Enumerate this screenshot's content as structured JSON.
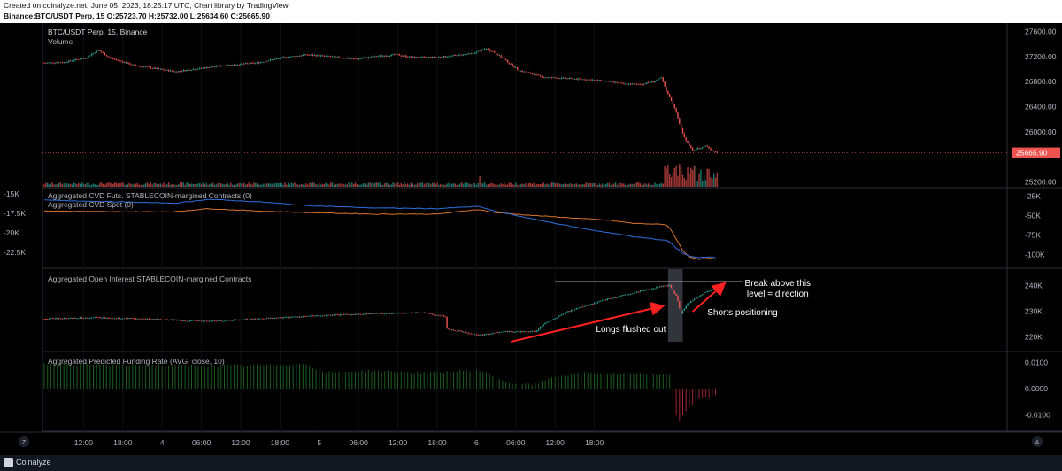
{
  "header": {
    "line1": "Created on coinalyze.net, June 05, 2023, 18:25:17 UTC, Chart library by TradingView",
    "line2": "Binance:BTC/USDT Perp, 15 O:25723.70 H:25732.00 L:25634.60 C:25665.90"
  },
  "footer": {
    "brand": "Coinalyze"
  },
  "colors": {
    "up": "#26a69a",
    "down": "#ef5350",
    "futs": "#d9742a",
    "spot": "#2f6fde",
    "funding_pos": "#1b5e20",
    "funding_neg": "#a0242d",
    "arrow": "#ff2020",
    "price_tag": "#ef5350"
  },
  "axis_corner": {
    "left": "Z",
    "right": "A"
  },
  "chart_data": [
    {
      "type": "candlestick",
      "title": "BTC/USDT Perp, 15, Binance",
      "subtitle": "Volume",
      "y_ticks": [
        "27600.00",
        "27200.00",
        "26800.00",
        "26400.00",
        "26000.00",
        "25200.00"
      ],
      "y_tick_values": [
        27600,
        27200,
        26800,
        26400,
        26000,
        25200
      ],
      "ylim": [
        25180,
        27650
      ],
      "last_price": "25665.90",
      "last_price_value": 25665.9,
      "price_path": [
        [
          0,
          27100
        ],
        [
          12,
          27110
        ],
        [
          25,
          27180
        ],
        [
          33,
          27300
        ],
        [
          40,
          27180
        ],
        [
          55,
          27060
        ],
        [
          70,
          27000
        ],
        [
          80,
          26960
        ],
        [
          95,
          27010
        ],
        [
          110,
          27060
        ],
        [
          130,
          27100
        ],
        [
          145,
          27180
        ],
        [
          160,
          27230
        ],
        [
          175,
          27200
        ],
        [
          190,
          27160
        ],
        [
          205,
          27210
        ],
        [
          215,
          27230
        ],
        [
          225,
          27190
        ],
        [
          240,
          27190
        ],
        [
          252,
          27220
        ],
        [
          262,
          27250
        ],
        [
          270,
          27330
        ],
        [
          276,
          27250
        ],
        [
          290,
          26980
        ],
        [
          305,
          26870
        ],
        [
          320,
          26850
        ],
        [
          335,
          26830
        ],
        [
          345,
          26800
        ],
        [
          355,
          26760
        ],
        [
          365,
          26760
        ],
        [
          372,
          26800
        ],
        [
          377,
          26860
        ],
        [
          380,
          26650
        ],
        [
          383,
          26500
        ],
        [
          386,
          26300
        ],
        [
          389,
          26050
        ],
        [
          392,
          25850
        ],
        [
          394,
          25780
        ],
        [
          396,
          25700
        ],
        [
          400,
          25740
        ],
        [
          404,
          25780
        ],
        [
          408,
          25700
        ],
        [
          411,
          25665
        ]
      ]
    },
    {
      "type": "line",
      "series": [
        {
          "name": "Aggregated CVD Futs. STABLECOIN-margined Contracts (0)",
          "axis": "right",
          "values": [
            [
              0,
              -44
            ],
            [
              40,
              -45
            ],
            [
              80,
              -45
            ],
            [
              100,
              -41
            ],
            [
              130,
              -44
            ],
            [
              160,
              -46
            ],
            [
              200,
              -48
            ],
            [
              240,
              -48
            ],
            [
              265,
              -42
            ],
            [
              275,
              -46
            ],
            [
              300,
              -50
            ],
            [
              330,
              -54
            ],
            [
              345,
              -56
            ],
            [
              360,
              -60
            ],
            [
              375,
              -61
            ],
            [
              381,
              -62
            ],
            [
              386,
              -80
            ],
            [
              390,
              -95
            ],
            [
              394,
              -103
            ],
            [
              400,
              -106
            ],
            [
              406,
              -105
            ],
            [
              411,
              -106
            ]
          ]
        },
        {
          "name": "Aggregated CVD Spot (0)",
          "axis": "left",
          "values": [
            [
              0,
              -15.8
            ],
            [
              40,
              -16.0
            ],
            [
              80,
              -16.2
            ],
            [
              100,
              -15.7
            ],
            [
              130,
              -16.0
            ],
            [
              160,
              -16.5
            ],
            [
              200,
              -16.8
            ],
            [
              240,
              -16.9
            ],
            [
              265,
              -16.6
            ],
            [
              275,
              -17.2
            ],
            [
              300,
              -18.3
            ],
            [
              330,
              -19.5
            ],
            [
              345,
              -20.0
            ],
            [
              360,
              -20.5
            ],
            [
              375,
              -20.9
            ],
            [
              381,
              -21.0
            ],
            [
              386,
              -22.0
            ],
            [
              390,
              -22.6
            ],
            [
              394,
              -23.0
            ],
            [
              400,
              -23.2
            ],
            [
              406,
              -23.1
            ],
            [
              411,
              -23.2
            ]
          ]
        }
      ],
      "left_ticks": [
        "-15K",
        "-17.5K",
        "-20K",
        "-22.5K"
      ],
      "left_tick_values": [
        -15,
        -17.5,
        -20,
        -22.5
      ],
      "left_ylim": [
        -24,
        -15
      ],
      "right_ticks": [
        "-25K",
        "-50K",
        "-75K",
        "-100K"
      ],
      "right_tick_values": [
        -25,
        -50,
        -75,
        -100
      ],
      "right_ylim": [
        -112,
        -22
      ]
    },
    {
      "type": "candlestick",
      "title": "Aggregated Open Interest STABLECOIN-margined Contracts",
      "y_ticks": [
        "240K",
        "230K",
        "220K"
      ],
      "y_tick_values": [
        240,
        230,
        220
      ],
      "ylim": [
        216,
        245
      ],
      "oi_path": [
        [
          0,
          227
        ],
        [
          30,
          227.5
        ],
        [
          60,
          227
        ],
        [
          80,
          226.5
        ],
        [
          100,
          226
        ],
        [
          130,
          227
        ],
        [
          160,
          228
        ],
        [
          200,
          229
        ],
        [
          230,
          229.5
        ],
        [
          245,
          228
        ],
        [
          246,
          223
        ],
        [
          256,
          222
        ],
        [
          265,
          220.5
        ],
        [
          280,
          222
        ],
        [
          300,
          222
        ],
        [
          305,
          225
        ],
        [
          320,
          230
        ],
        [
          340,
          234
        ],
        [
          360,
          237
        ],
        [
          375,
          239.5
        ],
        [
          382,
          240
        ],
        [
          386,
          236
        ],
        [
          389,
          229
        ],
        [
          393,
          233
        ],
        [
          400,
          236
        ],
        [
          406,
          238
        ],
        [
          411,
          239
        ]
      ],
      "level": 241.5,
      "annotations": [
        "Longs flushed out",
        "Break above this",
        "level = direction",
        "Shorts positioning"
      ]
    },
    {
      "type": "bar",
      "title": "Aggregated Predicted Funding Rate (AVG, close, 10)",
      "y_ticks": [
        "0.0100",
        "0.0000",
        "-0.0100"
      ],
      "y_tick_values": [
        0.01,
        0.0,
        -0.01
      ],
      "ylim": [
        -0.0145,
        0.0125
      ],
      "funding_path": [
        [
          0,
          0.0095
        ],
        [
          50,
          0.009
        ],
        [
          100,
          0.0088
        ],
        [
          140,
          0.009
        ],
        [
          160,
          0.0095
        ],
        [
          170,
          0.0062
        ],
        [
          200,
          0.0068
        ],
        [
          235,
          0.006
        ],
        [
          265,
          0.0072
        ],
        [
          285,
          0.002
        ],
        [
          300,
          0.0015
        ],
        [
          310,
          0.0045
        ],
        [
          330,
          0.006
        ],
        [
          350,
          0.0058
        ],
        [
          370,
          0.0055
        ],
        [
          383,
          0.0055
        ],
        [
          384,
          -0.003
        ],
        [
          387,
          -0.0135
        ],
        [
          390,
          -0.01
        ],
        [
          394,
          -0.007
        ],
        [
          400,
          -0.004
        ],
        [
          406,
          -0.003
        ],
        [
          411,
          -0.0025
        ]
      ]
    }
  ],
  "x_axis": {
    "ticks": [
      "12:00",
      "18:00",
      "4",
      "06:00",
      "12:00",
      "18:00",
      "5",
      "06:00",
      "12:00",
      "18:00",
      "6",
      "06:00",
      "12:00",
      "18:00"
    ],
    "tick_bars": [
      24,
      48,
      72,
      96,
      120,
      144,
      168,
      192,
      216,
      240,
      264,
      288,
      312,
      336
    ]
  }
}
